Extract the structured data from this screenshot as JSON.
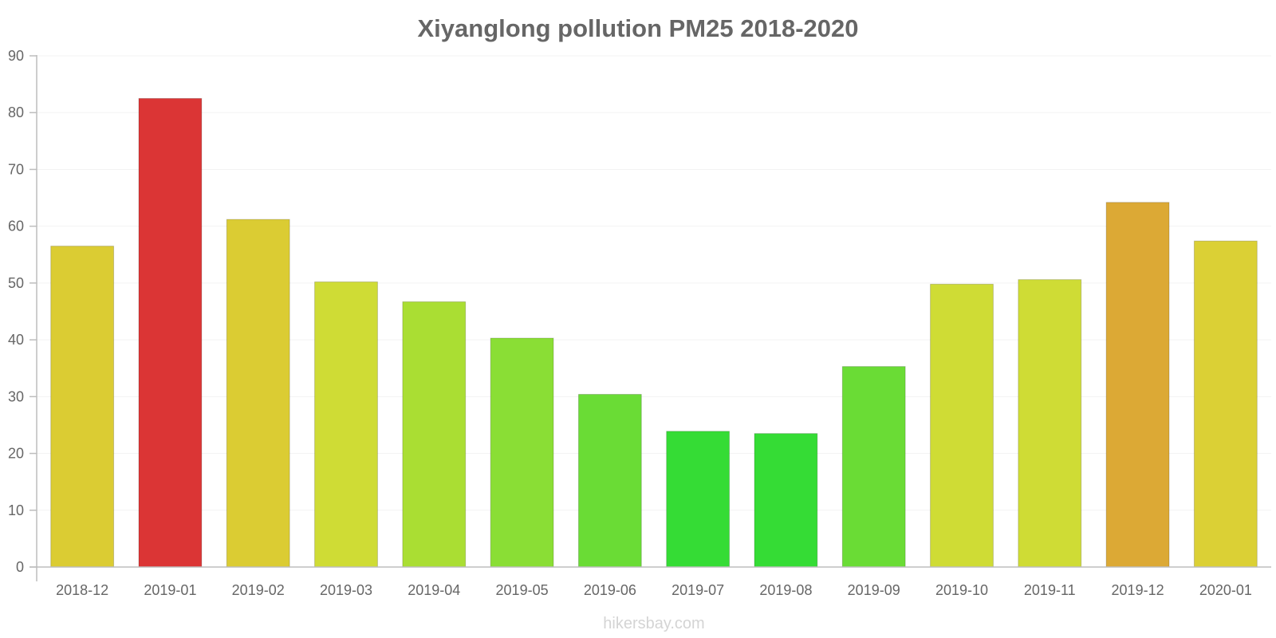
{
  "chart_data": {
    "type": "bar",
    "title": "Xiyanglong pollution PM25 2018-2020",
    "xlabel": "",
    "ylabel": "",
    "ylim": [
      0,
      90
    ],
    "yticks": [
      0,
      10,
      20,
      30,
      40,
      50,
      60,
      70,
      80,
      90
    ],
    "grid": true,
    "categories": [
      "2018-12",
      "2019-01",
      "2019-02",
      "2019-03",
      "2019-04",
      "2019-05",
      "2019-06",
      "2019-07",
      "2019-08",
      "2019-09",
      "2019-10",
      "2019-11",
      "2019-12",
      "2020-01"
    ],
    "values": [
      56.5,
      82.5,
      61.2,
      50.2,
      46.7,
      40.3,
      30.4,
      23.9,
      23.5,
      35.3,
      49.8,
      50.6,
      64.2,
      57.4
    ],
    "colors": [
      "#dbcc33",
      "#db3535",
      "#dbcc33",
      "#cfdc35",
      "#aade33",
      "#8ade35",
      "#6adc35",
      "#35dc35",
      "#35dc35",
      "#6adc35",
      "#cfdc35",
      "#cfdc35",
      "#dca935",
      "#dbd035"
    ],
    "watermark": "hikersbay.com"
  }
}
